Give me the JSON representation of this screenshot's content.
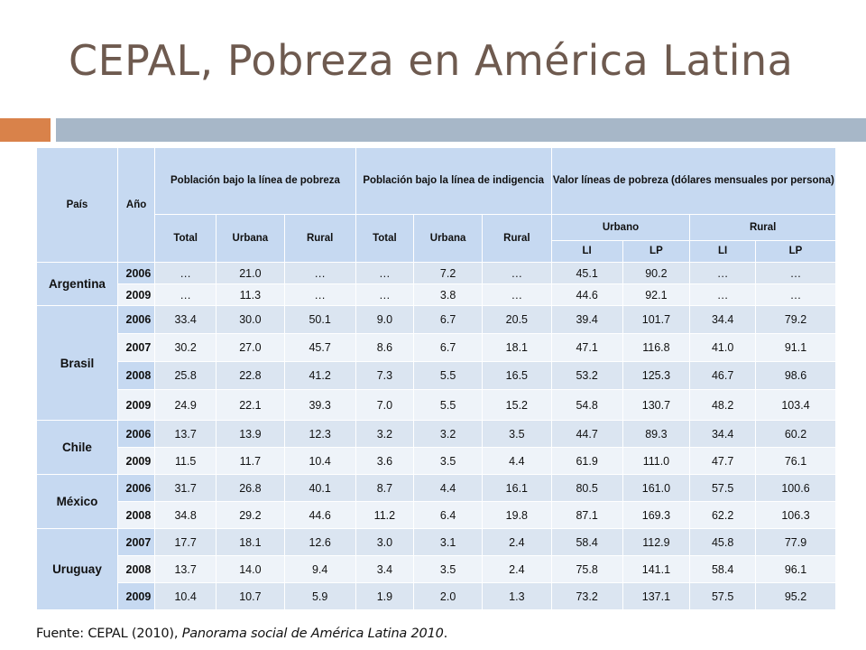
{
  "title": "CEPAL, Pobreza en América Latina",
  "table": {
    "h_pais": "País",
    "h_anio": "Año",
    "h_pobreza": "Población bajo la línea de pobreza",
    "h_indigencia": "Población bajo la línea de indigencia",
    "h_valor": "Valor líneas de pobreza (dólares mensuales por persona)",
    "h_total": "Total",
    "h_urbana": "Urbana",
    "h_rural": "Rural",
    "h_urbano": "Urbano",
    "h_rural2": "Rural",
    "h_li": "LI",
    "h_lp": "LP",
    "groups": [
      {
        "country": "Argentina",
        "rows": [
          {
            "year": "2006",
            "v": [
              "…",
              "21.0",
              "…",
              "…",
              "7.2",
              "…",
              "45.1",
              "90.2",
              "…",
              "…"
            ]
          },
          {
            "year": "2009",
            "v": [
              "…",
              "11.3",
              "…",
              "…",
              "3.8",
              "…",
              "44.6",
              "92.1",
              "…",
              "…"
            ]
          }
        ]
      },
      {
        "country": "Brasil",
        "rows": [
          {
            "year": "2006",
            "v": [
              "33.4",
              "30.0",
              "50.1",
              "9.0",
              "6.7",
              "20.5",
              "39.4",
              "101.7",
              "34.4",
              "79.2"
            ]
          },
          {
            "year": "2007",
            "v": [
              "30.2",
              "27.0",
              "45.7",
              "8.6",
              "6.7",
              "18.1",
              "47.1",
              "116.8",
              "41.0",
              "91.1"
            ]
          },
          {
            "year": "2008",
            "v": [
              "25.8",
              "22.8",
              "41.2",
              "7.3",
              "5.5",
              "16.5",
              "53.2",
              "125.3",
              "46.7",
              "98.6"
            ]
          },
          {
            "year": "2009",
            "v": [
              "24.9",
              "22.1",
              "39.3",
              "7.0",
              "5.5",
              "15.2",
              "54.8",
              "130.7",
              "48.2",
              "103.4"
            ]
          }
        ]
      },
      {
        "country": "Chile",
        "rows": [
          {
            "year": "2006",
            "v": [
              "13.7",
              "13.9",
              "12.3",
              "3.2",
              "3.2",
              "3.5",
              "44.7",
              "89.3",
              "34.4",
              "60.2"
            ]
          },
          {
            "year": "2009",
            "v": [
              "11.5",
              "11.7",
              "10.4",
              "3.6",
              "3.5",
              "4.4",
              "61.9",
              "111.0",
              "47.7",
              "76.1"
            ]
          }
        ]
      },
      {
        "country": "México",
        "rows": [
          {
            "year": "2006",
            "v": [
              "31.7",
              "26.8",
              "40.1",
              "8.7",
              "4.4",
              "16.1",
              "80.5",
              "161.0",
              "57.5",
              "100.6"
            ]
          },
          {
            "year": "2008",
            "v": [
              "34.8",
              "29.2",
              "44.6",
              "11.2",
              "6.4",
              "19.8",
              "87.1",
              "169.3",
              "62.2",
              "106.3"
            ]
          }
        ]
      },
      {
        "country": "Uruguay",
        "rows": [
          {
            "year": "2007",
            "v": [
              "17.7",
              "18.1",
              "12.6",
              "3.0",
              "3.1",
              "2.4",
              "58.4",
              "112.9",
              "45.8",
              "77.9"
            ]
          },
          {
            "year": "2008",
            "v": [
              "13.7",
              "14.0",
              "9.4",
              "3.4",
              "3.5",
              "2.4",
              "75.8",
              "141.1",
              "58.4",
              "96.1"
            ]
          },
          {
            "year": "2009",
            "v": [
              "10.4",
              "10.7",
              "5.9",
              "1.9",
              "2.0",
              "1.3",
              "73.2",
              "137.1",
              "57.5",
              "95.2"
            ]
          }
        ]
      }
    ]
  },
  "source": {
    "prefix": "Fuente: CEPAL (2010), ",
    "italic": "Panorama social de América Latina 2010",
    "suffix": "."
  }
}
